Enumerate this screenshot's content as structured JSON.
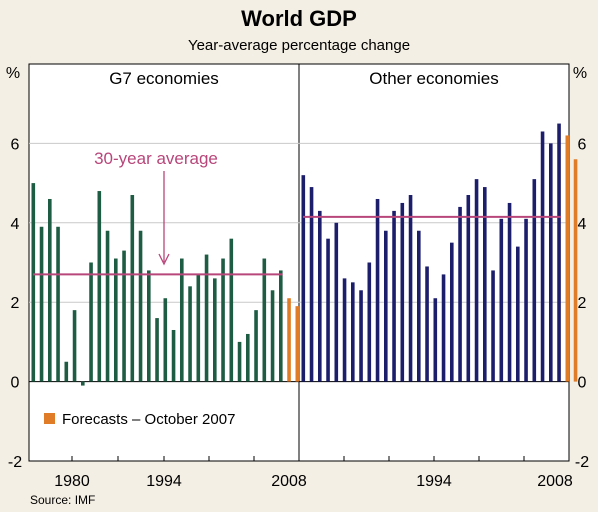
{
  "chart_data": {
    "type": "bar",
    "title": "World GDP",
    "subtitle": "Year-average percentage change",
    "unit_left": "%",
    "unit_right": "%",
    "ylim": [
      -2,
      8
    ],
    "yticks": [
      -2,
      0,
      2,
      4,
      6
    ],
    "colors": {
      "actual_g7": "#1f5c44",
      "actual_other": "#1c1e6b",
      "forecast": "#e07c27",
      "average": "#b8467a"
    },
    "panels": [
      {
        "title": "G7 economies",
        "x_start": 1977,
        "values": [
          5.0,
          3.9,
          4.6,
          3.9,
          0.5,
          1.8,
          -0.1,
          3.0,
          4.8,
          3.8,
          3.1,
          3.3,
          4.7,
          3.8,
          2.8,
          1.6,
          2.1,
          1.3,
          3.1,
          2.4,
          2.7,
          3.2,
          2.6,
          3.1,
          3.6,
          1.0,
          1.2,
          1.8,
          3.1,
          2.3,
          2.8
        ],
        "forecast_values": [
          2.1,
          1.9
        ],
        "average": 2.7,
        "xtick_labels": [
          "1980",
          "1994",
          "2008"
        ]
      },
      {
        "title": "Other economies",
        "x_start": 1977,
        "values": [
          5.2,
          4.9,
          4.3,
          3.6,
          4.0,
          2.6,
          2.5,
          2.3,
          3.0,
          4.6,
          3.8,
          4.3,
          4.5,
          4.7,
          3.8,
          2.9,
          2.1,
          2.7,
          3.5,
          4.4,
          4.7,
          5.1,
          4.9,
          2.8,
          4.1,
          4.5,
          3.4,
          4.1,
          5.1,
          6.3,
          6.0,
          6.5
        ],
        "forecast_values": [
          6.2,
          5.6
        ],
        "average": 4.15,
        "xtick_labels": [
          "1994",
          "2008"
        ]
      }
    ],
    "annotation": "30-year average",
    "legend": [
      {
        "name": "Forecasts – October 2007"
      }
    ],
    "source": "Source: IMF"
  }
}
